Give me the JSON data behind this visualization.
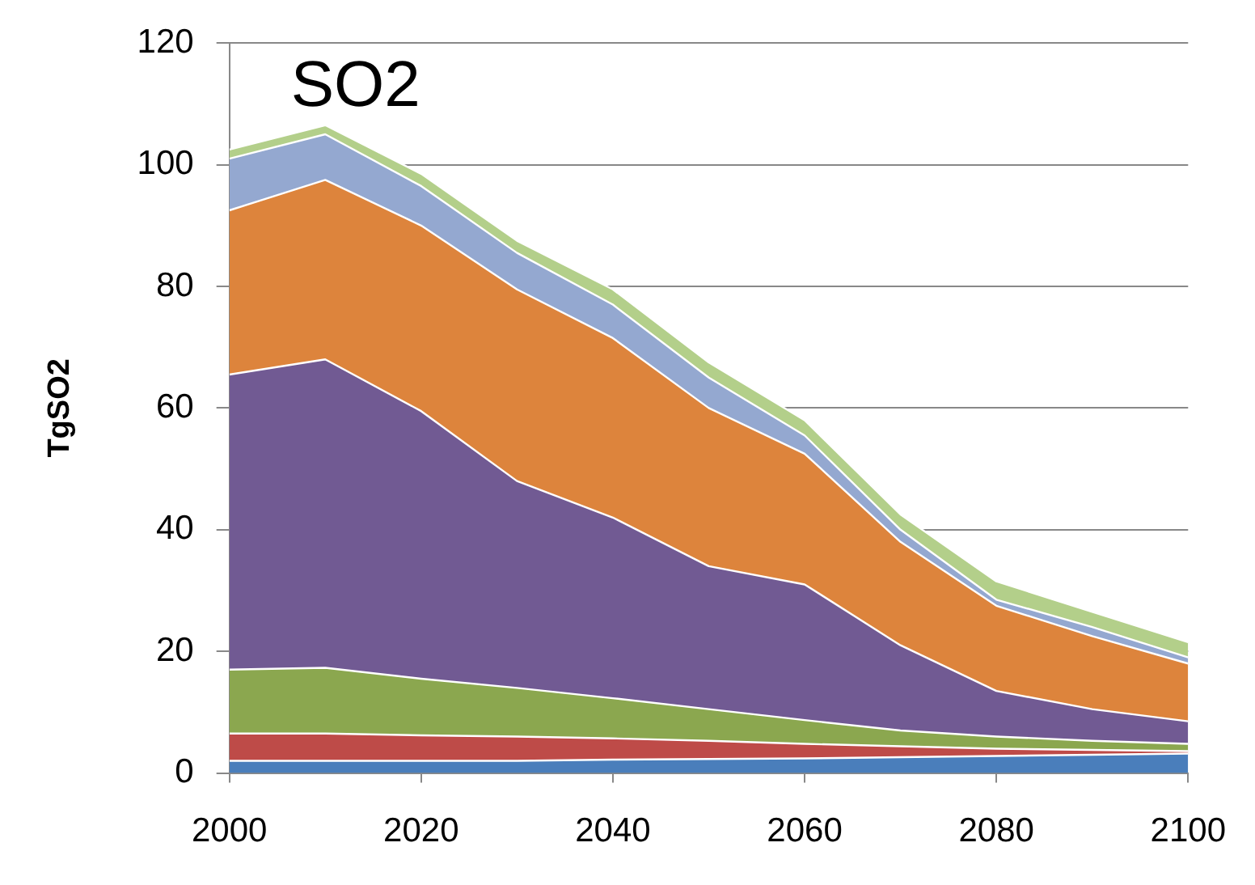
{
  "chart_data": {
    "type": "area",
    "title": "SO2",
    "ylabel": "TgSO2",
    "stacked": true,
    "grid": "y",
    "legend": false,
    "x": [
      2000,
      2010,
      2020,
      2030,
      2040,
      2050,
      2060,
      2070,
      2080,
      2090,
      2100
    ],
    "xlim": [
      2000,
      2100
    ],
    "xticks": [
      2000,
      2020,
      2040,
      2060,
      2080,
      2100
    ],
    "ylim": [
      0,
      120
    ],
    "yticks": [
      0,
      20,
      40,
      60,
      80,
      100,
      120
    ],
    "series": [
      {
        "color": "#4a7ebb",
        "values": [
          2,
          2,
          2,
          2,
          2.2,
          2.3,
          2.4,
          2.6,
          2.8,
          3,
          3.2
        ]
      },
      {
        "color": "#be4b48",
        "values": [
          4.5,
          4.5,
          4.2,
          4,
          3.5,
          3,
          2.4,
          1.8,
          1.2,
          0.8,
          0.4
        ]
      },
      {
        "color": "#8ba74f",
        "values": [
          10.5,
          10.8,
          9.3,
          8,
          6.6,
          5.2,
          3.9,
          2.6,
          2,
          1.5,
          1.2
        ]
      },
      {
        "color": "#715a93",
        "values": [
          48.5,
          50.7,
          44,
          34,
          29.7,
          23.5,
          22.3,
          14,
          7.5,
          5.2,
          3.7
        ]
      },
      {
        "color": "#dd843c",
        "values": [
          27,
          29.5,
          30.5,
          31.5,
          29.5,
          26,
          21.5,
          17,
          14,
          12,
          9.5
        ]
      },
      {
        "color": "#94a8d0",
        "values": [
          8.5,
          7.5,
          6.5,
          6,
          5.5,
          5,
          3,
          2,
          1,
          1.5,
          1
        ]
      },
      {
        "color": "#b3cf8a",
        "values": [
          1.5,
          1.5,
          2,
          2,
          2.5,
          2.5,
          2.5,
          2.5,
          3,
          2.5,
          2.5
        ]
      }
    ]
  }
}
